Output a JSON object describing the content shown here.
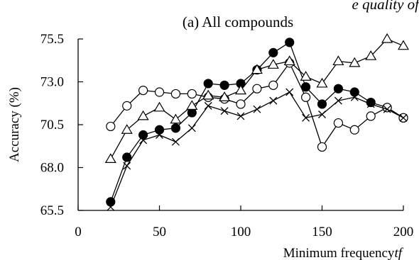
{
  "chart_data": {
    "type": "line",
    "title": "(a) All compounds",
    "header_fragment": "e quality of",
    "xlabel": "Minimum frequency",
    "xlabel_var": "tf",
    "ylabel": "Accuracy (%)",
    "xlim": [
      0,
      200
    ],
    "ylim": [
      65.5,
      75.5
    ],
    "xticks": [
      0,
      50,
      100,
      150,
      200
    ],
    "yticks": [
      "65.5",
      "68.0",
      "70.5",
      "73.0",
      "75.5"
    ],
    "grid": false,
    "legend": "none",
    "x": [
      20,
      30,
      40,
      50,
      60,
      70,
      80,
      90,
      100,
      110,
      120,
      130,
      140,
      150,
      160,
      170,
      180,
      190,
      200
    ],
    "series": [
      {
        "marker": "filled-circle",
        "color": "#000000",
        "values": [
          66.0,
          68.6,
          69.9,
          70.2,
          70.3,
          71.2,
          72.9,
          72.8,
          72.9,
          73.7,
          74.7,
          75.3,
          72.7,
          71.7,
          72.6,
          72.4,
          71.8,
          71.5,
          70.9
        ]
      },
      {
        "marker": "open-circle",
        "color": "#000000",
        "values": [
          70.4,
          71.6,
          72.5,
          72.4,
          72.3,
          72.3,
          72.1,
          72.0,
          71.7,
          72.6,
          72.8,
          74.1,
          72.1,
          69.2,
          70.6,
          70.2,
          71.0,
          71.5,
          70.9
        ]
      },
      {
        "marker": "open-triangle",
        "color": "#000000",
        "values": [
          68.5,
          70.2,
          71.0,
          71.5,
          70.8,
          71.6,
          72.2,
          72.1,
          72.5,
          73.7,
          74.0,
          74.2,
          73.3,
          72.9,
          74.2,
          74.1,
          74.5,
          75.5,
          75.1
        ]
      },
      {
        "marker": "x-cross",
        "color": "#000000",
        "values": [
          65.7,
          68.1,
          69.6,
          69.9,
          69.5,
          70.3,
          71.6,
          71.3,
          71.0,
          71.4,
          71.9,
          72.4,
          70.9,
          71.1,
          71.9,
          72.1,
          71.7,
          71.4,
          70.9
        ]
      }
    ]
  }
}
